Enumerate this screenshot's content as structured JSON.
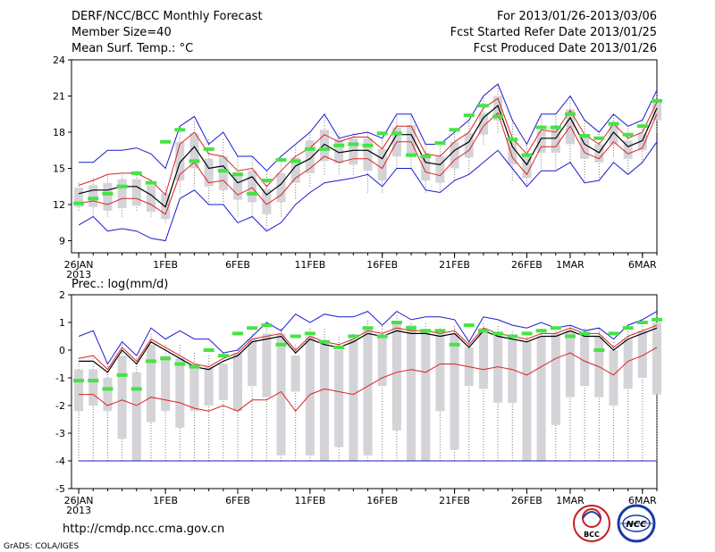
{
  "header": {
    "left_line1": "DERF/NCC/BCC Monthly Forecast",
    "left_line2": "Member Size=40",
    "left_line3": "Mean Surf. Temp.: °C",
    "right_line1": "For 2013/01/26-2013/03/06",
    "right_line2": "Fcst Started Refer Date 2013/01/25",
    "right_line3": "Fcst Produced Date 2013/01/26"
  },
  "footer": {
    "url": "http://cmdp.ncc.cma.gov.cn",
    "grads": "GrADS: COLA/IGES",
    "logo1_text": "BCC",
    "logo2_text": "NCC"
  },
  "colors": {
    "box": "#d3d3d8",
    "observed": "#44e444",
    "mean": "#000000",
    "spread": "#dd2222",
    "envelope": "#1a1ad0",
    "whisker": "#777777"
  },
  "chart_data": [
    {
      "type": "line",
      "title": "Mean Surf. Temp.: °C",
      "ylim": [
        8,
        24
      ],
      "yticks": [
        9,
        12,
        15,
        18,
        21,
        24
      ],
      "xlim": [
        0.5,
        41
      ],
      "xticks": [
        {
          "x": 1,
          "label": "26JAN",
          "sub": "2013"
        },
        {
          "x": 7,
          "label": "1FEB"
        },
        {
          "x": 12,
          "label": "6FEB"
        },
        {
          "x": 17,
          "label": "11FEB"
        },
        {
          "x": 22,
          "label": "16FEB"
        },
        {
          "x": 27,
          "label": "21FEB"
        },
        {
          "x": 32,
          "label": "26FEB"
        },
        {
          "x": 35,
          "label": "1MAR"
        },
        {
          "x": 40,
          "label": "6MAR"
        }
      ],
      "series": [
        {
          "name": "max",
          "values": [
            15.5,
            15.5,
            16.5,
            16.5,
            16.7,
            16.2,
            15.0,
            18.5,
            19.3,
            17.0,
            18.0,
            16.0,
            16.0,
            14.8,
            16.0,
            17.0,
            18.0,
            19.5,
            17.5,
            17.8,
            18.0,
            17.5,
            19.5,
            19.5,
            17.0,
            17.0,
            18.0,
            19.0,
            21.0,
            22.0,
            19.0,
            17.0,
            19.5,
            19.5,
            21.0,
            19.0,
            18.0,
            19.5,
            18.5,
            19.0,
            21.5
          ]
        },
        {
          "name": "upper",
          "values": [
            13.6,
            14.0,
            14.5,
            14.6,
            14.6,
            14.0,
            12.8,
            17.0,
            18.0,
            16.2,
            16.0,
            14.8,
            15.0,
            13.5,
            14.8,
            16.0,
            16.7,
            17.8,
            17.2,
            17.6,
            17.6,
            16.6,
            18.5,
            18.5,
            16.2,
            16.0,
            17.2,
            18.0,
            20.0,
            20.8,
            17.5,
            16.2,
            18.2,
            18.0,
            19.8,
            17.8,
            17.0,
            18.7,
            17.5,
            18.0,
            20.5
          ]
        },
        {
          "name": "mean",
          "values": [
            12.9,
            13.2,
            13.2,
            13.5,
            13.5,
            12.8,
            11.8,
            15.5,
            16.8,
            15.0,
            15.2,
            13.8,
            14.3,
            12.8,
            13.7,
            15.2,
            15.8,
            17.0,
            16.3,
            16.5,
            16.5,
            15.8,
            17.8,
            17.8,
            15.5,
            15.3,
            16.5,
            17.2,
            19.2,
            20.2,
            16.8,
            15.3,
            17.5,
            17.5,
            19.2,
            17.0,
            16.3,
            18.0,
            16.8,
            17.3,
            20.0
          ]
        },
        {
          "name": "lower",
          "values": [
            12.1,
            12.3,
            12.0,
            12.5,
            12.5,
            12.0,
            11.2,
            14.5,
            15.5,
            13.8,
            14.0,
            12.8,
            13.4,
            12.0,
            12.8,
            14.2,
            15.0,
            16.0,
            15.5,
            15.8,
            15.8,
            15.0,
            17.2,
            17.2,
            14.7,
            14.4,
            15.7,
            16.5,
            18.5,
            19.6,
            15.9,
            14.5,
            16.8,
            16.8,
            18.5,
            16.3,
            15.8,
            17.2,
            16.2,
            16.7,
            19.5
          ]
        },
        {
          "name": "min",
          "values": [
            10.3,
            11.0,
            9.8,
            10.0,
            9.8,
            9.2,
            9.0,
            12.5,
            13.2,
            12.0,
            12.0,
            10.5,
            11.0,
            9.8,
            10.5,
            12.0,
            13.0,
            13.8,
            14.0,
            14.2,
            14.5,
            13.5,
            15.0,
            15.0,
            13.2,
            13.0,
            14.0,
            14.5,
            15.5,
            16.5,
            15.0,
            13.5,
            14.8,
            14.8,
            15.5,
            13.8,
            14.0,
            15.5,
            14.5,
            15.5,
            17.2
          ]
        },
        {
          "name": "observed",
          "values": [
            12.1,
            12.5,
            12.9,
            13.5,
            14.6,
            13.8,
            17.2,
            18.2,
            15.6,
            16.6,
            14.8,
            14.5,
            12.9,
            14.0,
            15.7,
            15.6,
            16.6,
            16.6,
            16.9,
            17.0,
            16.9,
            17.9,
            17.9,
            16.1,
            16.0,
            17.1,
            18.2,
            19.4,
            20.2,
            19.3,
            17.4,
            16.1,
            18.4,
            18.4,
            19.5,
            17.7,
            17.5,
            18.7,
            17.8,
            18.5,
            20.6
          ]
        }
      ],
      "box_low": [
        11.8,
        11.8,
        11.5,
        11.7,
        11.9,
        11.4,
        10.8,
        14.0,
        15.0,
        13.5,
        13.2,
        12.4,
        12.2,
        11.2,
        12.2,
        13.8,
        14.6,
        15.6,
        15.4,
        15.3,
        14.8,
        14.0,
        16.0,
        16.0,
        14.0,
        13.8,
        15.0,
        15.9,
        17.8,
        19.0,
        15.3,
        14.2,
        16.3,
        16.3,
        17.0,
        15.8,
        15.5,
        17.0,
        15.8,
        16.5,
        19.0
      ],
      "box_high": [
        13.4,
        13.6,
        13.8,
        14.1,
        14.1,
        13.6,
        12.9,
        17.2,
        17.9,
        15.8,
        16.0,
        14.7,
        14.8,
        13.3,
        14.6,
        15.9,
        17.3,
        18.2,
        17.4,
        17.5,
        17.5,
        16.6,
        18.4,
        18.6,
        16.1,
        16.0,
        17.2,
        17.9,
        19.6,
        21.0,
        17.3,
        16.0,
        18.1,
        18.4,
        19.9,
        17.6,
        17.0,
        18.8,
        17.3,
        17.9,
        20.7
      ],
      "whisker_low": [
        11.5,
        11.0,
        11.0,
        11.0,
        11.5,
        11.0,
        10.5,
        13.0,
        13.5,
        12.0,
        12.0,
        11.0,
        11.0,
        10.0,
        11.0,
        12.5,
        13.5,
        14.5,
        14.5,
        14.5,
        13.0,
        13.0,
        15.0,
        15.0,
        13.0,
        13.0,
        14.0,
        14.5,
        17.0,
        18.0,
        14.0,
        13.5,
        15.0,
        15.0,
        15.5,
        14.0,
        14.0,
        16.0,
        14.5,
        15.5,
        18.0
      ],
      "whisker_high": [
        13.8,
        14.2,
        14.5,
        14.6,
        14.5,
        14.0,
        13.5,
        18.5,
        19.0,
        17.5,
        17.5,
        16.0,
        16.0,
        14.8,
        15.5,
        17.0,
        18.0,
        19.5,
        18.0,
        18.0,
        18.0,
        17.5,
        19.5,
        19.5,
        17.0,
        17.0,
        18.0,
        19.0,
        21.0,
        22.0,
        19.0,
        17.0,
        19.5,
        19.5,
        21.0,
        19.0,
        18.0,
        19.5,
        18.5,
        19.0,
        21.5
      ]
    },
    {
      "type": "line",
      "title": "Prec.: log(mm/d)",
      "ylim": [
        -5,
        2
      ],
      "yticks": [
        -5,
        -4,
        -3,
        -2,
        -1,
        0,
        1,
        2
      ],
      "xlim": [
        0.5,
        41
      ],
      "xticks": [
        {
          "x": 1,
          "label": "26JAN",
          "sub": "2013"
        },
        {
          "x": 7,
          "label": "1FEB"
        },
        {
          "x": 12,
          "label": "6FEB"
        },
        {
          "x": 17,
          "label": "11FEB"
        },
        {
          "x": 22,
          "label": "16FEB"
        },
        {
          "x": 27,
          "label": "21FEB"
        },
        {
          "x": 32,
          "label": "26FEB"
        },
        {
          "x": 35,
          "label": "1MAR"
        },
        {
          "x": 40,
          "label": "6MAR"
        }
      ],
      "series": [
        {
          "name": "max",
          "values": [
            0.5,
            0.7,
            -0.5,
            0.3,
            -0.2,
            0.8,
            0.4,
            0.7,
            0.4,
            0.4,
            -0.1,
            0.0,
            0.5,
            1.0,
            0.7,
            1.3,
            1.0,
            1.3,
            1.2,
            1.2,
            1.4,
            0.9,
            1.4,
            1.1,
            1.2,
            1.2,
            1.1,
            0.3,
            1.2,
            1.1,
            0.9,
            0.8,
            1.0,
            0.8,
            0.9,
            0.7,
            0.8,
            0.4,
            0.9,
            1.1,
            1.4
          ]
        },
        {
          "name": "upper",
          "values": [
            -0.3,
            -0.2,
            -0.7,
            0.1,
            -0.4,
            0.4,
            0.1,
            -0.2,
            -0.5,
            -0.6,
            -0.3,
            -0.1,
            0.4,
            0.5,
            0.6,
            0.0,
            0.5,
            0.3,
            0.2,
            0.4,
            0.7,
            0.6,
            0.8,
            0.7,
            0.7,
            0.6,
            0.7,
            0.2,
            0.8,
            0.6,
            0.5,
            0.4,
            0.6,
            0.6,
            0.8,
            0.6,
            0.6,
            0.1,
            0.5,
            0.7,
            0.9
          ]
        },
        {
          "name": "mean",
          "values": [
            -0.4,
            -0.4,
            -0.8,
            0.0,
            -0.5,
            0.3,
            0.0,
            -0.3,
            -0.6,
            -0.7,
            -0.4,
            -0.2,
            0.3,
            0.4,
            0.5,
            -0.1,
            0.4,
            0.2,
            0.1,
            0.3,
            0.6,
            0.5,
            0.7,
            0.6,
            0.6,
            0.5,
            0.6,
            0.1,
            0.7,
            0.5,
            0.4,
            0.3,
            0.5,
            0.5,
            0.7,
            0.5,
            0.5,
            0.0,
            0.4,
            0.6,
            0.8
          ]
        },
        {
          "name": "lower",
          "values": [
            -1.6,
            -1.6,
            -2.0,
            -1.8,
            -2.0,
            -1.7,
            -1.8,
            -1.9,
            -2.1,
            -2.2,
            -2.0,
            -2.2,
            -1.8,
            -1.8,
            -1.5,
            -2.2,
            -1.6,
            -1.4,
            -1.5,
            -1.6,
            -1.3,
            -1.0,
            -0.8,
            -0.7,
            -0.8,
            -0.5,
            -0.5,
            -0.6,
            -0.7,
            -0.6,
            -0.7,
            -0.9,
            -0.6,
            -0.3,
            -0.1,
            -0.4,
            -0.6,
            -0.9,
            -0.4,
            -0.2,
            0.1
          ]
        },
        {
          "name": "min",
          "values": [
            -4.0,
            -4.0,
            -4.0,
            -4.0,
            -4.0,
            -4.0,
            -4.0,
            -4.0,
            -4.0,
            -4.0,
            -4.0,
            -4.0,
            -4.0,
            -4.0,
            -4.0,
            -4.0,
            -4.0,
            -4.0,
            -4.0,
            -4.0,
            -4.0,
            -4.0,
            -4.0,
            -4.0,
            -4.0,
            -4.0,
            -4.0,
            -4.0,
            -4.0,
            -4.0,
            -4.0,
            -4.0,
            -4.0,
            -4.0,
            -4.0,
            -4.0,
            -4.0,
            -4.0,
            -4.0,
            -4.0,
            -4.0
          ]
        },
        {
          "name": "observed",
          "values": [
            -1.1,
            -1.1,
            -1.4,
            -0.9,
            -1.4,
            -0.4,
            -0.3,
            -0.5,
            -0.6,
            -0.0,
            -0.2,
            0.6,
            0.8,
            0.9,
            0.2,
            0.5,
            0.6,
            0.3,
            0.1,
            0.5,
            0.8,
            0.5,
            1.0,
            0.8,
            0.7,
            0.7,
            0.2,
            0.9,
            0.7,
            0.6,
            0.5,
            0.6,
            0.7,
            0.8,
            0.5,
            0.6,
            0.0,
            0.6,
            0.8,
            1.0,
            1.1
          ]
        }
      ],
      "box_low": [
        -2.2,
        -2.0,
        -2.2,
        -3.2,
        -4.0,
        -2.6,
        -2.2,
        -2.8,
        -2.2,
        -2.0,
        -1.8,
        -2.2,
        -1.3,
        -1.7,
        -3.8,
        -1.5,
        -3.8,
        -4.0,
        -3.5,
        -4.0,
        -3.8,
        -1.3,
        -2.9,
        -4.0,
        -4.0,
        -2.2,
        -3.6,
        -1.3,
        -1.4,
        -1.9,
        -1.9,
        -4.0,
        -4.0,
        -2.7,
        -1.7,
        -1.3,
        -1.7,
        -2.0,
        -1.4,
        -1.0,
        -1.6
      ],
      "box_high": [
        -0.7,
        -0.7,
        -1.0,
        -0.2,
        -0.8,
        0.2,
        -0.2,
        -0.3,
        -0.5,
        -0.6,
        -0.5,
        -0.1,
        0.4,
        0.6,
        0.6,
        -0.2,
        0.5,
        0.3,
        0.0,
        0.4,
        0.8,
        0.5,
        1.0,
        0.9,
        0.7,
        0.6,
        0.6,
        0.1,
        0.8,
        0.6,
        0.4,
        0.3,
        0.5,
        0.6,
        0.7,
        0.5,
        0.5,
        0.0,
        0.4,
        0.7,
        1.0
      ],
      "whisker_low": [
        -4.0,
        -4.0,
        -4.0,
        -4.0,
        -4.0,
        -4.0,
        -4.0,
        -4.0,
        -4.0,
        -4.0,
        -4.0,
        -4.0,
        -4.0,
        -4.0,
        -4.0,
        -4.0,
        -4.0,
        -4.0,
        -4.0,
        -4.0,
        -4.0,
        -4.0,
        -4.0,
        -4.0,
        -4.0,
        -4.0,
        -4.0,
        -4.0,
        -4.0,
        -4.0,
        -4.0,
        -4.0,
        -4.0,
        -4.0,
        -4.0,
        -4.0,
        -4.0,
        -4.0,
        -4.0,
        -4.0,
        -4.0
      ],
      "whisker_high": [
        -0.3,
        -0.2,
        -0.5,
        0.2,
        -0.3,
        0.6,
        0.2,
        0.2,
        -0.1,
        -0.2,
        -0.1,
        0.1,
        0.6,
        0.9,
        0.8,
        0.2,
        0.8,
        0.8,
        0.5,
        0.6,
        1.1,
        0.9,
        1.3,
        1.0,
        1.0,
        0.8,
        0.9,
        0.3,
        1.0,
        0.9,
        0.7,
        0.6,
        0.8,
        0.8,
        0.9,
        0.8,
        0.8,
        0.3,
        0.8,
        0.9,
        1.3
      ]
    }
  ]
}
